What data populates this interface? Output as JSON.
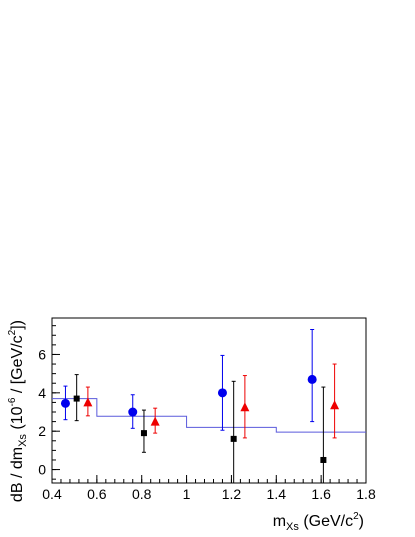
{
  "chart_data": {
    "type": "scatter",
    "xlabel": {
      "base": "m",
      "sub": "Xs",
      "unit_pre": " (GeV/c",
      "unit_sup": "2",
      "unit_post": ")"
    },
    "ylabel": {
      "pre": "dB / dm",
      "sub": "Xs",
      "mid": " (10",
      "sup1": "-6",
      "mid2": " / [GeV/c",
      "sup2": "2",
      "post": "])"
    },
    "xlim": [
      0.4,
      1.8
    ],
    "ylim": [
      -0.7,
      7.9
    ],
    "x_ticks": [
      "0.4",
      "0.6",
      "0.8",
      "1",
      "1.2",
      "1.4",
      "1.6",
      "1.8"
    ],
    "x_tick_values": [
      0.4,
      0.6,
      0.8,
      1.0,
      1.2,
      1.4,
      1.6,
      1.8
    ],
    "y_ticks": [
      "0",
      "2",
      "4",
      "6"
    ],
    "y_tick_values": [
      0,
      2,
      4,
      6
    ],
    "model_histogram": {
      "color": "#5a5adc",
      "edges": [
        0.4,
        0.6,
        1.0,
        1.4,
        1.8
      ],
      "values": [
        3.7,
        2.78,
        2.2,
        1.95
      ]
    },
    "series": [
      {
        "marker": "circle",
        "color": "#0000ee",
        "points": [
          {
            "x": 0.46,
            "y": 3.45,
            "lo": 2.6,
            "hi": 4.35
          },
          {
            "x": 0.76,
            "y": 3.0,
            "lo": 2.15,
            "hi": 3.9
          },
          {
            "x": 1.16,
            "y": 4.0,
            "lo": 2.05,
            "hi": 5.95
          },
          {
            "x": 1.56,
            "y": 4.7,
            "lo": 2.5,
            "hi": 7.3
          }
        ]
      },
      {
        "marker": "square",
        "color": "#000000",
        "points": [
          {
            "x": 0.51,
            "y": 3.7,
            "lo": 2.55,
            "hi": 4.95
          },
          {
            "x": 0.81,
            "y": 1.9,
            "lo": 0.9,
            "hi": 3.1
          },
          {
            "x": 1.21,
            "y": 1.6,
            "lo": -0.7,
            "hi": 4.6
          },
          {
            "x": 1.61,
            "y": 0.5,
            "lo": -0.7,
            "hi": 4.3
          }
        ]
      },
      {
        "marker": "triangle",
        "color": "#ee0000",
        "points": [
          {
            "x": 0.56,
            "y": 3.5,
            "lo": 2.8,
            "hi": 4.3
          },
          {
            "x": 0.86,
            "y": 2.5,
            "lo": 1.9,
            "hi": 3.2
          },
          {
            "x": 1.26,
            "y": 3.25,
            "lo": 1.65,
            "hi": 4.9
          },
          {
            "x": 1.66,
            "y": 3.35,
            "lo": 1.65,
            "hi": 5.5
          }
        ]
      }
    ]
  }
}
